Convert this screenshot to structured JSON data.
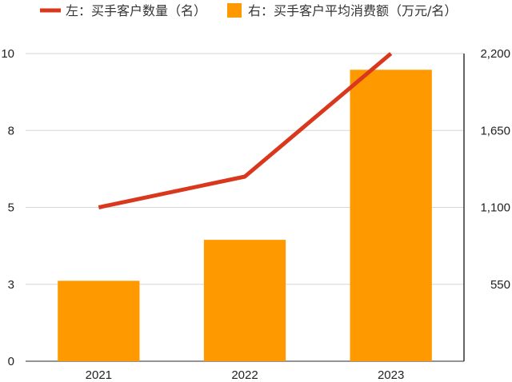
{
  "chart_data": {
    "type": "bar",
    "categories": [
      "2021",
      "2022",
      "2023"
    ],
    "series": [
      {
        "name": "右：买手客户平均消费额（万元/名）",
        "chart": "bar",
        "axis": "right",
        "values": [
          575,
          868,
          2084
        ],
        "color": "#FF9900"
      },
      {
        "name": "左：买手客户数量（名）",
        "chart": "line",
        "axis": "left",
        "values": [
          5.0,
          6.0,
          10.0
        ],
        "color": "#D9381E"
      }
    ],
    "left_axis": {
      "ticks": [
        "0",
        "3",
        "5",
        "8",
        "10"
      ],
      "ylim": [
        0,
        10
      ]
    },
    "right_axis": {
      "ticks": [
        "550",
        "1,100",
        "1,650",
        "2,200"
      ],
      "ylim": [
        0,
        2200
      ]
    },
    "grid": true,
    "legend": "top"
  }
}
